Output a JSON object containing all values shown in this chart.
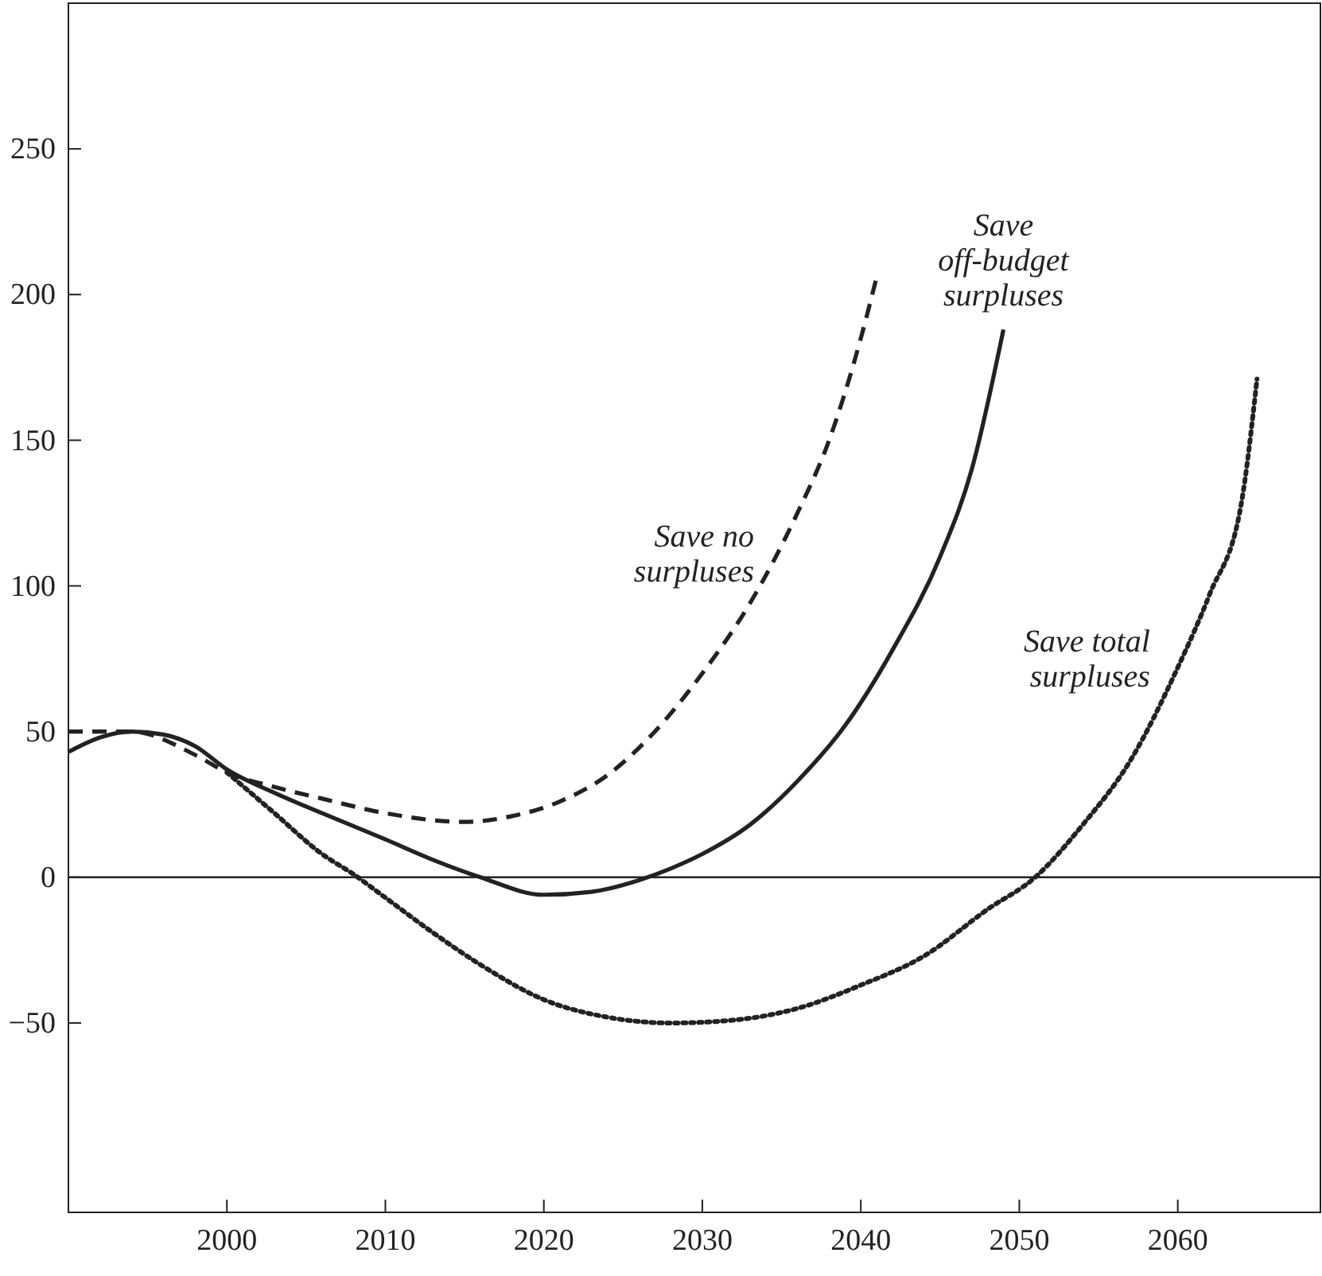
{
  "chart_data": {
    "type": "line",
    "xlim": [
      1990,
      2069
    ],
    "ylim": [
      -115,
      300
    ],
    "xticks": [
      2000,
      2010,
      2020,
      2030,
      2040,
      2050,
      2060
    ],
    "yticks": [
      -50,
      0,
      50,
      100,
      150,
      200,
      250
    ],
    "grid": false,
    "ref_lines": [
      {
        "axis": "y",
        "value": 0
      }
    ],
    "series": [
      {
        "name": "Save no\nsurpluses",
        "color": "#222222",
        "line_style": "dashed",
        "x": [
          1990,
          1994,
          1998,
          2000,
          2003,
          2006,
          2010,
          2015,
          2018,
          2021,
          2024,
          2027,
          2030,
          2033,
          2036,
          2038,
          2040,
          2041
        ],
        "values": [
          50,
          50,
          42,
          36,
          31,
          27,
          22,
          19,
          21,
          26,
          35,
          50,
          70,
          94,
          125,
          150,
          185,
          206
        ]
      },
      {
        "name": "Save\noff-budget\nsurpluses",
        "color": "#222222",
        "line_style": "solid",
        "x": [
          1990,
          1992,
          1994,
          1996,
          1998,
          2000,
          2003,
          2006,
          2010,
          2013,
          2016,
          2020,
          2023,
          2026,
          2028,
          2030,
          2033,
          2036,
          2039,
          2042,
          2045,
          2047,
          2049
        ],
        "values": [
          43,
          48,
          50,
          49,
          45,
          37,
          29,
          22,
          13,
          6,
          0,
          -6,
          -5,
          -1,
          3,
          8,
          18,
          33,
          52,
          78,
          110,
          140,
          188
        ]
      },
      {
        "name": "Save total\nsurpluses",
        "color": "#222222",
        "line_style": "dotted",
        "x": [
          2000,
          2003,
          2006,
          2008,
          2010,
          2013,
          2016,
          2020,
          2024,
          2028,
          2032,
          2036,
          2040,
          2044,
          2048,
          2051,
          2054,
          2057,
          2060,
          2062,
          2064,
          2065
        ],
        "values": [
          36,
          22,
          8,
          1,
          -7,
          -19,
          -30,
          -42,
          -48,
          -50,
          -49,
          -45,
          -37,
          -27,
          -11,
          0,
          18,
          40,
          72,
          97,
          128,
          171
        ]
      }
    ]
  }
}
